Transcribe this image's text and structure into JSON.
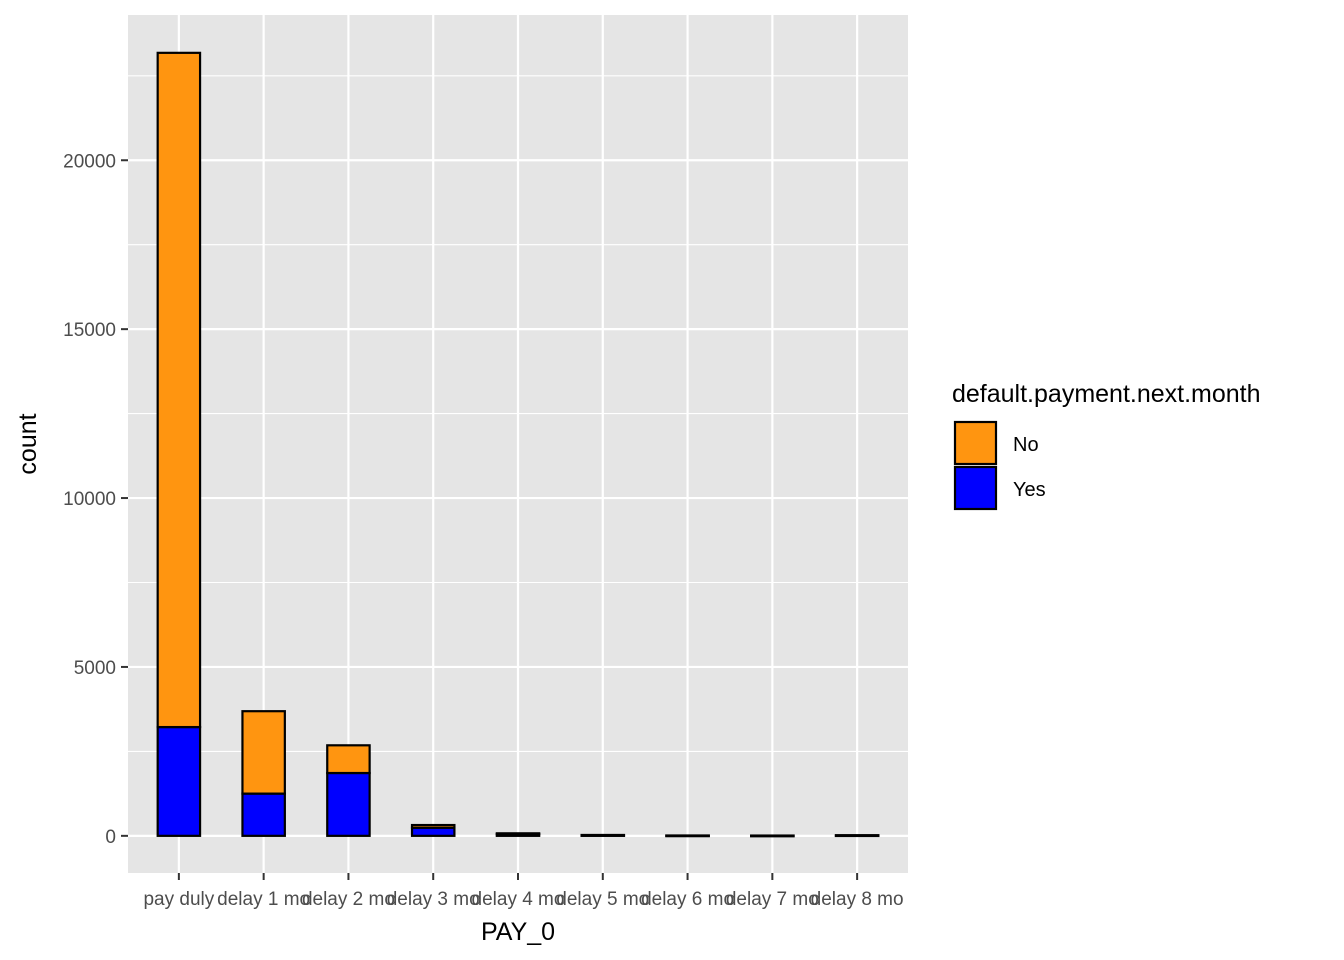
{
  "chart_data": {
    "type": "bar",
    "stacked": true,
    "xlabel": "PAY_0",
    "ylabel": "count",
    "categories": [
      "pay duly",
      "delay 1 mo",
      "delay 2 mo",
      "delay 3 mo",
      "delay 4 mo",
      "delay 5 mo",
      "delay 6 mo",
      "delay 7 mo",
      "delay 8 mo"
    ],
    "series": [
      {
        "name": "No",
        "color": "#FF9510",
        "values": [
          19960,
          2440,
          820,
          80,
          25,
          12,
          5,
          6,
          8
        ]
      },
      {
        "name": "Yes",
        "color": "#0000FF",
        "values": [
          3220,
          1250,
          1860,
          240,
          50,
          14,
          6,
          3,
          11
        ]
      }
    ],
    "y_ticks": [
      0,
      5000,
      10000,
      15000,
      20000
    ],
    "ylim": [
      -1100,
      24300
    ],
    "legend": {
      "title": "default.payment.next.month",
      "position": "right"
    },
    "grid": true,
    "panel_background": "#E5E5E5",
    "grid_color": "#FFFFFF",
    "bar_outline": "#000000"
  }
}
